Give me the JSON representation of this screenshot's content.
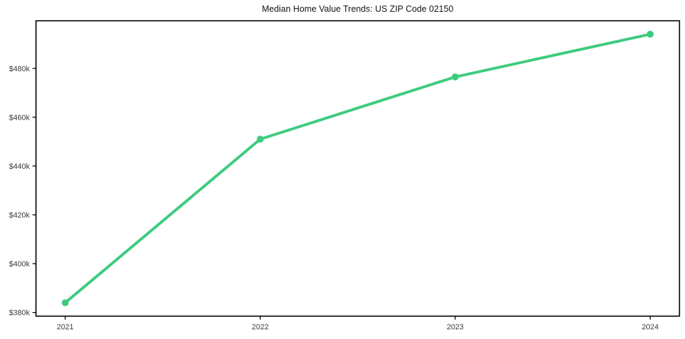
{
  "chart": {
    "title": "Median Home Value Trends: US ZIP Code 02150"
  },
  "chart_data": {
    "type": "line",
    "title": "Median Home Value Trends: US ZIP Code 02150",
    "xlabel": "",
    "ylabel": "",
    "categories": [
      "2021",
      "2022",
      "2023",
      "2024"
    ],
    "x": [
      2021,
      2022,
      2023,
      2024
    ],
    "series": [
      {
        "name": "median-home-value",
        "values_k": [
          384,
          451,
          476.5,
          494
        ],
        "values_usd": [
          384000,
          451000,
          476500,
          494000
        ]
      }
    ],
    "xlim": [
      2020.85,
      2024.15
    ],
    "ylim_k": [
      378.5,
      499.5
    ],
    "y_ticks_k": [
      380,
      400,
      420,
      440,
      460,
      480
    ],
    "y_tick_labels": [
      "$380k",
      "$400k",
      "$420k",
      "$440k",
      "$460k",
      "$480k"
    ],
    "x_tick_labels": [
      "2021",
      "2022",
      "2023",
      "2024"
    ],
    "grid": false,
    "legend": "none",
    "line_color": "#3ecb7e",
    "marker": "circle",
    "line_width": 4,
    "marker_radius": 5,
    "axis_color": "#000000",
    "tick_label_color": "#3a3a3a",
    "background": "#ffffff"
  }
}
